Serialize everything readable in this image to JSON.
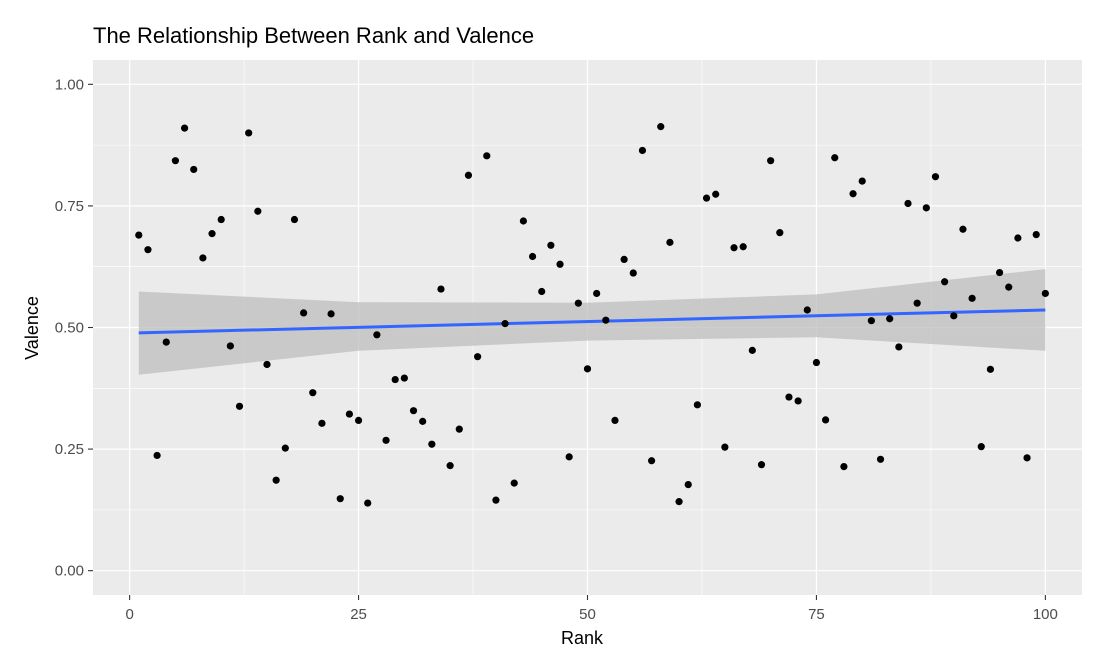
{
  "chart_data": {
    "type": "scatter",
    "title": "The Relationship Between Rank and Valence",
    "xlabel": "Rank",
    "ylabel": "Valence",
    "xlim": [
      -4,
      104
    ],
    "ylim": [
      -0.05,
      1.05
    ],
    "x_ticks": [
      0,
      25,
      50,
      75,
      100
    ],
    "x_tick_labels": [
      "0",
      "25",
      "50",
      "75",
      "100"
    ],
    "y_ticks": [
      0,
      0.25,
      0.5,
      0.75,
      1.0
    ],
    "y_tick_labels": [
      "0.00",
      "0.25",
      "0.50",
      "0.75",
      "1.00"
    ],
    "grid": true,
    "colors": {
      "panel": "#ebebeb",
      "grid": "#ffffff",
      "point": "#000000",
      "fit_line": "#3366ff",
      "ribbon": "#bdbdbd"
    },
    "points": [
      {
        "x": 1,
        "y": 0.69
      },
      {
        "x": 2,
        "y": 0.66
      },
      {
        "x": 3,
        "y": 0.237
      },
      {
        "x": 4,
        "y": 0.47
      },
      {
        "x": 5,
        "y": 0.843
      },
      {
        "x": 6,
        "y": 0.91
      },
      {
        "x": 7,
        "y": 0.825
      },
      {
        "x": 8,
        "y": 0.643
      },
      {
        "x": 9,
        "y": 0.693
      },
      {
        "x": 10,
        "y": 0.722
      },
      {
        "x": 11,
        "y": 0.462
      },
      {
        "x": 12,
        "y": 0.338
      },
      {
        "x": 13,
        "y": 0.9
      },
      {
        "x": 14,
        "y": 0.739
      },
      {
        "x": 15,
        "y": 0.424
      },
      {
        "x": 16,
        "y": 0.186
      },
      {
        "x": 17,
        "y": 0.252
      },
      {
        "x": 18,
        "y": 0.722
      },
      {
        "x": 19,
        "y": 0.53
      },
      {
        "x": 20,
        "y": 0.366
      },
      {
        "x": 21,
        "y": 0.303
      },
      {
        "x": 22,
        "y": 0.528
      },
      {
        "x": 23,
        "y": 0.148
      },
      {
        "x": 24,
        "y": 0.322
      },
      {
        "x": 25,
        "y": 0.309
      },
      {
        "x": 26,
        "y": 0.139
      },
      {
        "x": 27,
        "y": 0.485
      },
      {
        "x": 28,
        "y": 0.268
      },
      {
        "x": 29,
        "y": 0.393
      },
      {
        "x": 30,
        "y": 0.396
      },
      {
        "x": 31,
        "y": 0.329
      },
      {
        "x": 32,
        "y": 0.307
      },
      {
        "x": 33,
        "y": 0.26
      },
      {
        "x": 34,
        "y": 0.579
      },
      {
        "x": 35,
        "y": 0.216
      },
      {
        "x": 36,
        "y": 0.291
      },
      {
        "x": 37,
        "y": 0.813
      },
      {
        "x": 38,
        "y": 0.44
      },
      {
        "x": 39,
        "y": 0.853
      },
      {
        "x": 40,
        "y": 0.145
      },
      {
        "x": 41,
        "y": 0.508
      },
      {
        "x": 42,
        "y": 0.18
      },
      {
        "x": 43,
        "y": 0.719
      },
      {
        "x": 44,
        "y": 0.646
      },
      {
        "x": 45,
        "y": 0.574
      },
      {
        "x": 46,
        "y": 0.669
      },
      {
        "x": 47,
        "y": 0.63
      },
      {
        "x": 48,
        "y": 0.234
      },
      {
        "x": 49,
        "y": 0.55
      },
      {
        "x": 50,
        "y": 0.415
      },
      {
        "x": 51,
        "y": 0.57
      },
      {
        "x": 52,
        "y": 0.515
      },
      {
        "x": 53,
        "y": 0.309
      },
      {
        "x": 54,
        "y": 0.64
      },
      {
        "x": 55,
        "y": 0.612
      },
      {
        "x": 56,
        "y": 0.864
      },
      {
        "x": 57,
        "y": 0.226
      },
      {
        "x": 58,
        "y": 0.913
      },
      {
        "x": 59,
        "y": 0.675
      },
      {
        "x": 60,
        "y": 0.142
      },
      {
        "x": 61,
        "y": 0.177
      },
      {
        "x": 62,
        "y": 0.341
      },
      {
        "x": 63,
        "y": 0.766
      },
      {
        "x": 64,
        "y": 0.774
      },
      {
        "x": 65,
        "y": 0.254
      },
      {
        "x": 66,
        "y": 0.664
      },
      {
        "x": 67,
        "y": 0.666
      },
      {
        "x": 68,
        "y": 0.453
      },
      {
        "x": 69,
        "y": 0.218
      },
      {
        "x": 70,
        "y": 0.843
      },
      {
        "x": 71,
        "y": 0.695
      },
      {
        "x": 72,
        "y": 0.357
      },
      {
        "x": 73,
        "y": 0.349
      },
      {
        "x": 74,
        "y": 0.536
      },
      {
        "x": 75,
        "y": 0.428
      },
      {
        "x": 76,
        "y": 0.31
      },
      {
        "x": 77,
        "y": 0.849
      },
      {
        "x": 78,
        "y": 0.214
      },
      {
        "x": 79,
        "y": 0.775
      },
      {
        "x": 80,
        "y": 0.801
      },
      {
        "x": 81,
        "y": 0.514
      },
      {
        "x": 82,
        "y": 0.229
      },
      {
        "x": 83,
        "y": 0.518
      },
      {
        "x": 84,
        "y": 0.46
      },
      {
        "x": 85,
        "y": 0.755
      },
      {
        "x": 86,
        "y": 0.55
      },
      {
        "x": 87,
        "y": 0.746
      },
      {
        "x": 88,
        "y": 0.81
      },
      {
        "x": 89,
        "y": 0.594
      },
      {
        "x": 90,
        "y": 0.524
      },
      {
        "x": 91,
        "y": 0.702
      },
      {
        "x": 92,
        "y": 0.56
      },
      {
        "x": 93,
        "y": 0.255
      },
      {
        "x": 94,
        "y": 0.414
      },
      {
        "x": 95,
        "y": 0.613
      },
      {
        "x": 96,
        "y": 0.583
      },
      {
        "x": 97,
        "y": 0.684
      },
      {
        "x": 98,
        "y": 0.232
      },
      {
        "x": 99,
        "y": 0.691
      },
      {
        "x": 100,
        "y": 0.57
      }
    ],
    "fit_line": {
      "x": [
        1,
        100
      ],
      "y": [
        0.489,
        0.536
      ]
    },
    "confidence_band": {
      "x": [
        1,
        25,
        50,
        75,
        100
      ],
      "lower": [
        0.403,
        0.452,
        0.473,
        0.48,
        0.452
      ],
      "upper": [
        0.574,
        0.552,
        0.551,
        0.568,
        0.62
      ]
    }
  }
}
